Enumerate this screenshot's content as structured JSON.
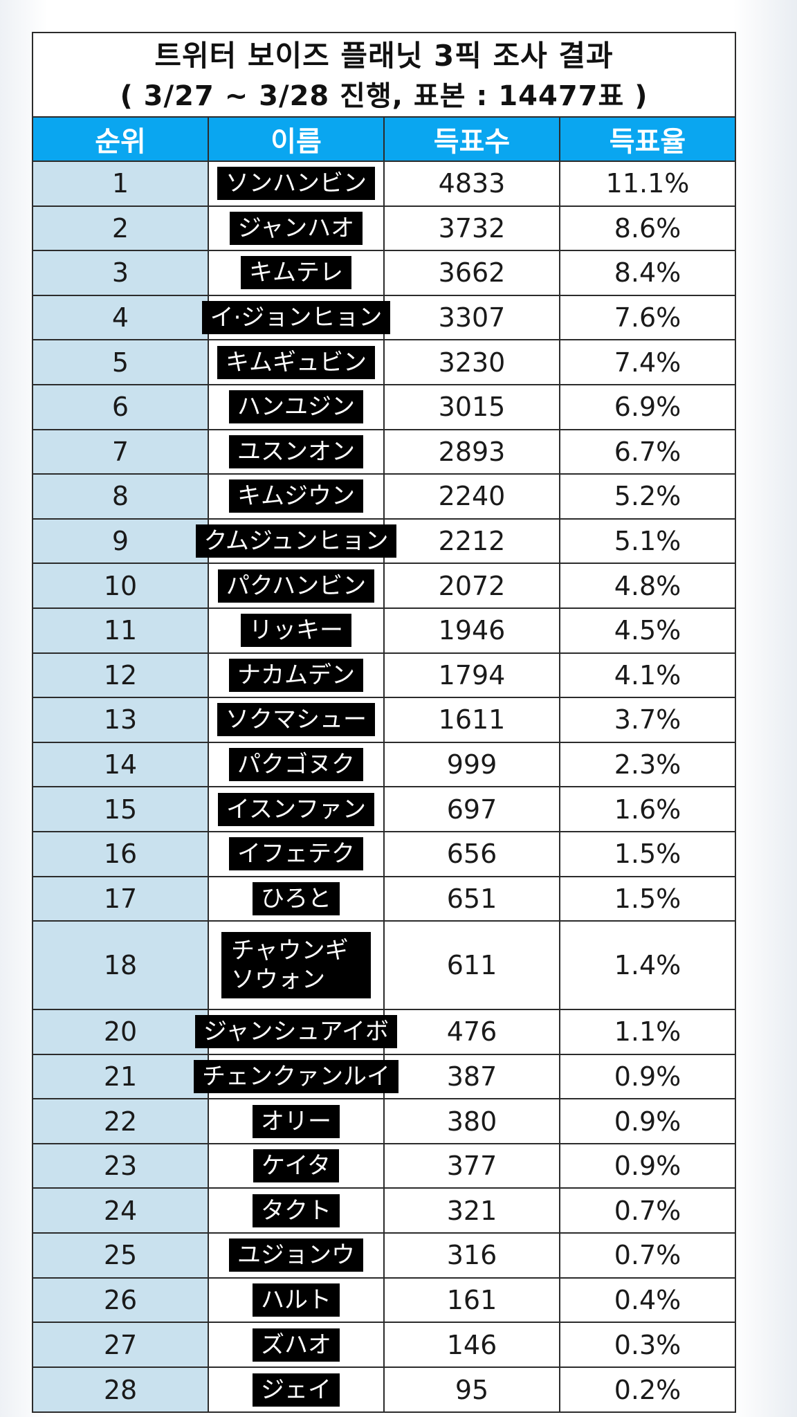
{
  "title": {
    "line1": "트위터 보이즈 플래닛 3픽 조사 결과",
    "line2": "( 3/27 ~ 3/28 진행, 표본 : 14477표 )"
  },
  "table": {
    "headers": [
      "순위",
      "이름",
      "득표수",
      "득표율"
    ],
    "rows": [
      {
        "rank": "1",
        "name": "ソンハンビン",
        "votes": "4833",
        "rate": "11.1%"
      },
      {
        "rank": "2",
        "name": "ジャンハオ",
        "votes": "3732",
        "rate": "8.6%"
      },
      {
        "rank": "3",
        "name": "キムテレ",
        "votes": "3662",
        "rate": "8.4%"
      },
      {
        "rank": "4",
        "name": "イ·ジョンヒョン",
        "votes": "3307",
        "rate": "7.6%"
      },
      {
        "rank": "5",
        "name": "キムギュビン",
        "votes": "3230",
        "rate": "7.4%"
      },
      {
        "rank": "6",
        "name": "ハンユジン",
        "votes": "3015",
        "rate": "6.9%"
      },
      {
        "rank": "7",
        "name": "ユスンオン",
        "votes": "2893",
        "rate": "6.7%"
      },
      {
        "rank": "8",
        "name": "キムジウン",
        "votes": "2240",
        "rate": "5.2%"
      },
      {
        "rank": "9",
        "name": "クムジュンヒョン",
        "votes": "2212",
        "rate": "5.1%"
      },
      {
        "rank": "10",
        "name": "パクハンビン",
        "votes": "2072",
        "rate": "4.8%"
      },
      {
        "rank": "11",
        "name": "リッキー",
        "votes": "1946",
        "rate": "4.5%"
      },
      {
        "rank": "12",
        "name": "ナカムデン",
        "votes": "1794",
        "rate": "4.1%"
      },
      {
        "rank": "13",
        "name": "ソクマシュー",
        "votes": "1611",
        "rate": "3.7%"
      },
      {
        "rank": "14",
        "name": "パクゴヌク",
        "votes": "999",
        "rate": "2.3%"
      },
      {
        "rank": "15",
        "name": "イスンファン",
        "votes": "697",
        "rate": "1.6%"
      },
      {
        "rank": "16",
        "name": "イフェテク",
        "votes": "656",
        "rate": "1.5%"
      },
      {
        "rank": "17",
        "name": "ひろと",
        "votes": "651",
        "rate": "1.5%"
      },
      {
        "rank": "18",
        "name": "チャウンギ ソウォン",
        "votes": "611",
        "rate": "1.4%",
        "tall": true
      },
      {
        "rank": "20",
        "name": "ジャンシュアイボ",
        "votes": "476",
        "rate": "1.1%"
      },
      {
        "rank": "21",
        "name": "チェンクァンルイ",
        "votes": "387",
        "rate": "0.9%"
      },
      {
        "rank": "22",
        "name": "オリー",
        "votes": "380",
        "rate": "0.9%"
      },
      {
        "rank": "23",
        "name": "ケイタ",
        "votes": "377",
        "rate": "0.9%"
      },
      {
        "rank": "24",
        "name": "タクト",
        "votes": "321",
        "rate": "0.7%"
      },
      {
        "rank": "25",
        "name": "ユジョンウ",
        "votes": "316",
        "rate": "0.7%"
      },
      {
        "rank": "26",
        "name": "ハルト",
        "votes": "161",
        "rate": "0.4%"
      },
      {
        "rank": "27",
        "name": "ズハオ",
        "votes": "146",
        "rate": "0.3%"
      },
      {
        "rank": "28",
        "name": "ジェイ",
        "votes": "95",
        "rate": "0.2%"
      }
    ]
  },
  "colors": {
    "header_bg": "#0aa6f0",
    "rank_column_bg": "#c9e1ee",
    "name_overlay_bg": "#000000"
  }
}
